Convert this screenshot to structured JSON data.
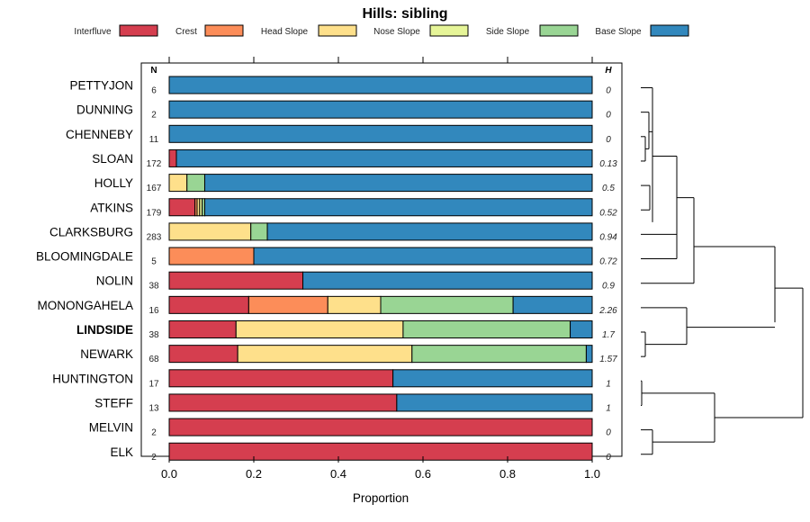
{
  "chart_data": {
    "type": "bar",
    "orientation": "horizontal-stacked",
    "title": "Hills: sibling",
    "xlabel": "Proportion",
    "xlim": [
      0,
      1
    ],
    "xticks": [
      "0.0",
      "0.2",
      "0.4",
      "0.6",
      "0.8",
      "1.0"
    ],
    "n_header": "N",
    "h_header": "H",
    "legend": [
      {
        "name": "Interfluve",
        "color": "#d53e4f"
      },
      {
        "name": "Crest",
        "color": "#fc8d59"
      },
      {
        "name": "Head Slope",
        "color": "#fee08b"
      },
      {
        "name": "Nose Slope",
        "color": "#e6f598"
      },
      {
        "name": "Side Slope",
        "color": "#99d594"
      },
      {
        "name": "Base Slope",
        "color": "#3288bd"
      }
    ],
    "rows": [
      {
        "label": "PETTYJON",
        "bold": false,
        "n": "6",
        "h": "0",
        "values": [
          0,
          0,
          0,
          0,
          0,
          1.0
        ]
      },
      {
        "label": "DUNNING",
        "bold": false,
        "n": "2",
        "h": "0",
        "values": [
          0,
          0,
          0,
          0,
          0,
          1.0
        ]
      },
      {
        "label": "CHENNEBY",
        "bold": false,
        "n": "11",
        "h": "0",
        "values": [
          0,
          0,
          0,
          0,
          0,
          1.0
        ]
      },
      {
        "label": "SLOAN",
        "bold": false,
        "n": "172",
        "h": "0.13",
        "values": [
          0.017,
          0,
          0,
          0,
          0,
          0.983
        ]
      },
      {
        "label": "HOLLY",
        "bold": false,
        "n": "167",
        "h": "0.5",
        "values": [
          0,
          0,
          0.042,
          0,
          0.042,
          0.916
        ]
      },
      {
        "label": "ATKINS",
        "bold": false,
        "n": "179",
        "h": "0.52",
        "values": [
          0.061,
          0.005,
          0.006,
          0.006,
          0.006,
          0.916
        ]
      },
      {
        "label": "CLARKSBURG",
        "bold": false,
        "n": "283",
        "h": "0.94",
        "values": [
          0,
          0,
          0.193,
          0,
          0.039,
          0.768
        ]
      },
      {
        "label": "BLOOMINGDALE",
        "bold": false,
        "n": "5",
        "h": "0.72",
        "values": [
          0,
          0.2,
          0,
          0,
          0,
          0.8
        ]
      },
      {
        "label": "NOLIN",
        "bold": false,
        "n": "38",
        "h": "0.9",
        "values": [
          0.316,
          0,
          0,
          0,
          0,
          0.684
        ]
      },
      {
        "label": "MONONGAHELA",
        "bold": false,
        "n": "16",
        "h": "2.26",
        "values": [
          0.188,
          0.187,
          0.125,
          0,
          0.313,
          0.187
        ]
      },
      {
        "label": "LINDSIDE",
        "bold": true,
        "n": "38",
        "h": "1.7",
        "values": [
          0.158,
          0,
          0.395,
          0,
          0.395,
          0.052
        ]
      },
      {
        "label": "NEWARK",
        "bold": false,
        "n": "68",
        "h": "1.57",
        "values": [
          0.162,
          0,
          0.412,
          0,
          0.412,
          0.014
        ]
      },
      {
        "label": "HUNTINGTON",
        "bold": false,
        "n": "17",
        "h": "1",
        "values": [
          0.529,
          0,
          0,
          0,
          0,
          0.471
        ]
      },
      {
        "label": "STEFF",
        "bold": false,
        "n": "13",
        "h": "1",
        "values": [
          0.538,
          0,
          0,
          0,
          0,
          0.462
        ]
      },
      {
        "label": "MELVIN",
        "bold": false,
        "n": "2",
        "h": "0",
        "values": [
          1.0,
          0,
          0,
          0,
          0,
          0
        ]
      },
      {
        "label": "ELK",
        "bold": false,
        "n": "2",
        "h": "0",
        "values": [
          1.0,
          0,
          0,
          0,
          0,
          0
        ]
      }
    ]
  }
}
